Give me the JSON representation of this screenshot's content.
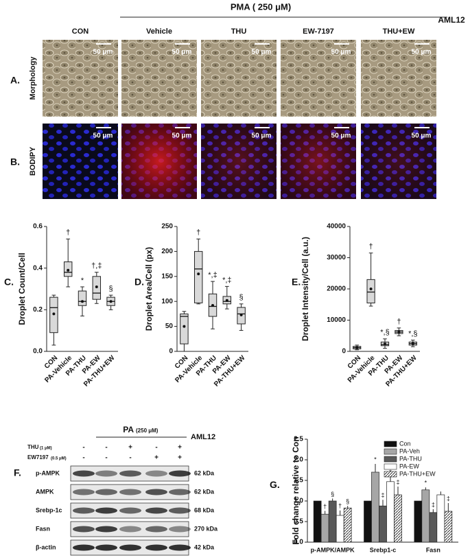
{
  "figure": {
    "treatment_header": "PMA ( 250 μM)",
    "cell_line": "AML12",
    "columns": [
      "CON",
      "Vehicle",
      "THU",
      "EW-7197",
      "THU+EW"
    ],
    "panel_a_label": "A.",
    "panel_a_title": "Morphology",
    "panel_b_label": "B.",
    "panel_b_title": "BODIPY",
    "scale_bar": "50 μm",
    "panel_f": {
      "label": "F.",
      "pa": "PA",
      "pa_dose": "(250 μM)",
      "cell_line": "AML12",
      "treatments": [
        {
          "name": "THU",
          "dose": "(1 μM)",
          "signs": [
            "-",
            "-",
            "+",
            "-",
            "+"
          ]
        },
        {
          "name": "EW7197",
          "dose": "(0.5 μM)",
          "signs": [
            "-",
            "-",
            "-",
            "+",
            "+"
          ]
        }
      ],
      "rows": [
        {
          "protein": "p-AMPK",
          "size": "62 kDa"
        },
        {
          "protein": "AMPK",
          "size": "62 kDa"
        },
        {
          "protein": "Srebp-1c",
          "size": "68  kDa"
        },
        {
          "protein": "Fasn",
          "size": "270 kDa"
        },
        {
          "protein": "β-actin",
          "size": "42 kDa"
        }
      ]
    }
  },
  "chart_data": [
    {
      "type": "box",
      "panel": "C.",
      "ylabel": "Droplet Count/Cell",
      "categories": [
        "CON",
        "PA-Vehicle",
        "PA-THU",
        "PA-EW",
        "PA-THU+EW"
      ],
      "min": [
        0.03,
        0.31,
        0.17,
        0.23,
        0.2
      ],
      "q1": [
        0.09,
        0.36,
        0.22,
        0.25,
        0.22
      ],
      "median": [
        0.21,
        0.38,
        0.24,
        0.28,
        0.24
      ],
      "q3": [
        0.26,
        0.43,
        0.29,
        0.36,
        0.26
      ],
      "max": [
        0.27,
        0.54,
        0.31,
        0.38,
        0.27
      ],
      "mean": [
        0.18,
        0.39,
        0.24,
        0.31,
        0.24
      ],
      "annotations": [
        null,
        "†",
        "*",
        "†,‡",
        "§"
      ],
      "color": "#d9d9d9",
      "ylim": [
        0,
        0.6
      ],
      "yticks": [
        {
          "value": 0,
          "label": "0.0"
        },
        0.2,
        0.4,
        0.6
      ]
    },
    {
      "type": "box",
      "panel": "D.",
      "ylabel": "Droplet Area/Cell (px)",
      "categories": [
        "CON",
        "PA-Vehicle",
        "PA-THU",
        "PA-EW",
        "PA-THU+EW"
      ],
      "min": [
        0,
        95,
        45,
        85,
        42
      ],
      "q1": [
        15,
        97,
        70,
        95,
        55
      ],
      "median": [
        70,
        165,
        90,
        100,
        75
      ],
      "q3": [
        75,
        200,
        115,
        110,
        88
      ],
      "max": [
        80,
        225,
        140,
        130,
        95
      ],
      "mean": [
        50,
        155,
        92,
        102,
        73
      ],
      "annotations": [
        null,
        "†",
        "*,‡",
        "*,‡",
        "§"
      ],
      "color": "#d9d9d9",
      "ylim": [
        0,
        250
      ],
      "yticks": [
        0,
        50,
        100,
        150,
        200,
        250
      ]
    },
    {
      "type": "box",
      "panel": "E.",
      "ylabel": "Droplet Intensity/Cell (a.u.)",
      "categories": [
        "CON",
        "PA-Vehicle",
        "PA-THU",
        "PA-EW",
        "PA-THU+EW"
      ],
      "min": [
        500,
        14500,
        1000,
        5000,
        1500
      ],
      "q1": [
        800,
        15500,
        1800,
        5700,
        2000
      ],
      "median": [
        1200,
        19000,
        2200,
        6200,
        2500
      ],
      "q3": [
        1600,
        23000,
        3000,
        6700,
        3000
      ],
      "max": [
        2000,
        31500,
        4000,
        7500,
        3600
      ],
      "mean": [
        1200,
        20000,
        2400,
        6200,
        2500
      ],
      "annotations": [
        null,
        "†",
        "*,§",
        "†",
        "*,§"
      ],
      "color": "#d9d9d9",
      "ylim": [
        0,
        40000
      ],
      "yticks": [
        0,
        10000,
        20000,
        30000,
        40000
      ]
    },
    {
      "type": "bar",
      "panel": "G.",
      "ylabel": "Fold change relative to Con",
      "categories": [
        "p-AMPK/AMPK",
        "Srebp1-c",
        "Fasn"
      ],
      "series": [
        {
          "name": "Con",
          "color": "#111111",
          "values": [
            1.0,
            1.0,
            1.0
          ],
          "errors": [
            0,
            0,
            0
          ],
          "annotations": [
            null,
            null,
            null
          ]
        },
        {
          "name": "PA-Veh",
          "color": "#a6a6a6",
          "values": [
            0.68,
            1.7,
            1.27
          ],
          "errors": [
            0.08,
            0.2,
            0.06
          ],
          "annotations": [
            "†",
            "*",
            "*"
          ]
        },
        {
          "name": "PA-THU",
          "color": "#595959",
          "values": [
            1.0,
            0.88,
            0.72
          ],
          "errors": [
            0.06,
            0.15,
            0.08
          ],
          "annotations": [
            "§",
            "‡",
            "‡"
          ]
        },
        {
          "name": "PA-EW",
          "color": "#ffffff",
          "values": [
            0.65,
            1.47,
            1.15
          ],
          "errors": [
            0.12,
            0.12,
            0.08
          ],
          "annotations": [
            "†",
            "*",
            null
          ]
        },
        {
          "name": "PA-THU+EW",
          "color": "hatch",
          "values": [
            0.83,
            1.15,
            0.75
          ],
          "errors": [
            0.05,
            0.2,
            0.2
          ],
          "annotations": [
            "§",
            "‡",
            "‡"
          ]
        }
      ],
      "ylim": [
        0,
        2.5
      ],
      "yticks": [
        {
          "value": 0,
          "label": "0.0"
        },
        0.5,
        {
          "value": 1,
          "label": "1.0"
        },
        1.5,
        {
          "value": 2,
          "label": "2.0"
        },
        2.5
      ],
      "legend": "top-right"
    }
  ]
}
